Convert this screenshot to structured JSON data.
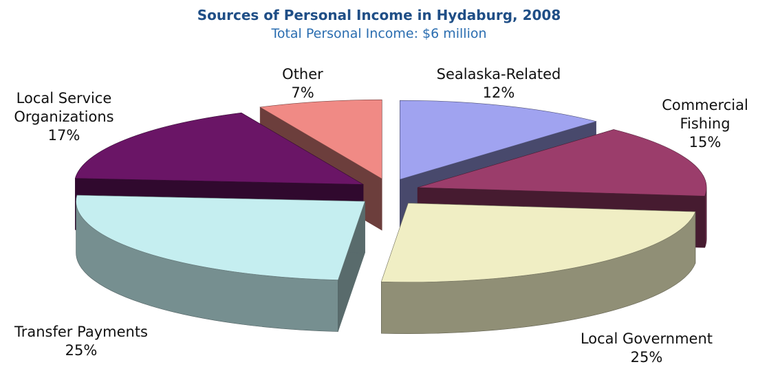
{
  "chart_data": {
    "type": "pie3d",
    "title": "Sources of Personal Income in Hydaburg, 2008",
    "subtitle": "Total Personal Income: $6 million",
    "categories": [
      "Sealaska-Related",
      "Commercial Fishing",
      "Local Government",
      "Transfer Payments",
      "Local Service Organizations",
      "Other"
    ],
    "values": [
      12,
      15,
      25,
      25,
      17,
      7
    ],
    "value_labels": [
      "12%",
      "15%",
      "25%",
      "25%",
      "17%",
      "7%"
    ],
    "colors": [
      "#a0a3f0",
      "#9b3d6b",
      "#f0eec4",
      "#c5eef0",
      "#6a1566",
      "#f08a85"
    ]
  }
}
